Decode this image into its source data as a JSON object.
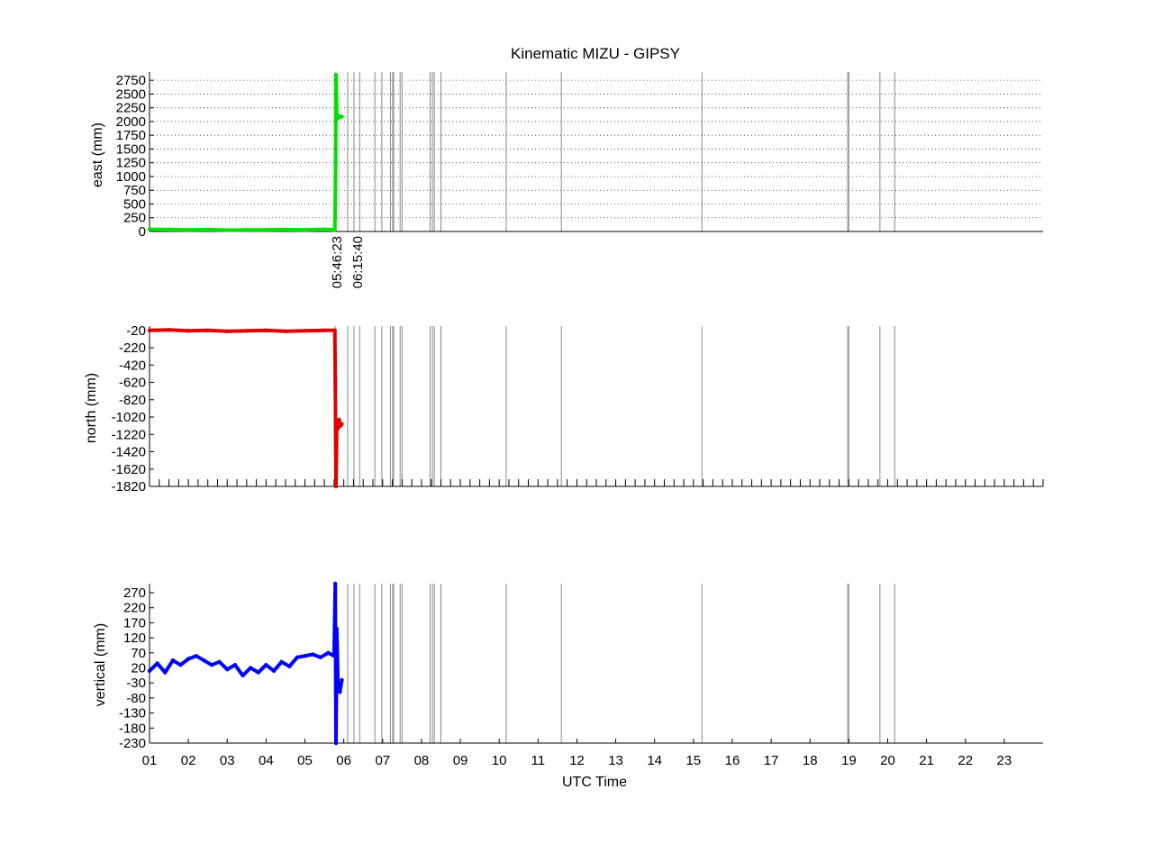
{
  "figure": {
    "title": "Kinematic MIZU - GIPSY",
    "xlabel": "UTC Time"
  },
  "chart_data": [
    {
      "type": "scatter",
      "title": "Kinematic MIZU - GIPSY",
      "xlabel": "",
      "ylabel": "east (mm)",
      "color": "#00e000",
      "xlim": [
        1,
        24
      ],
      "ylim": [
        0,
        2900
      ],
      "yticks": [
        0,
        250,
        500,
        750,
        1000,
        1250,
        1500,
        1750,
        2000,
        2250,
        2500,
        2750
      ],
      "ygrid": "dotted",
      "event_label_1": "05:46:23",
      "event_label_2": "06:15:40",
      "series": [
        {
          "x": [
            1.0,
            1.5,
            2.0,
            2.5,
            3.0,
            3.5,
            4.0,
            4.5,
            5.0,
            5.5,
            5.77,
            5.78,
            5.79,
            5.8,
            5.82,
            5.84,
            5.87,
            5.9,
            5.95
          ],
          "values": [
            40,
            35,
            30,
            35,
            25,
            30,
            30,
            35,
            30,
            40,
            30,
            600,
            1300,
            2850,
            2100,
            2050,
            2100,
            2080,
            2090
          ]
        }
      ]
    },
    {
      "type": "scatter",
      "xlabel": "",
      "ylabel": "north (mm)",
      "color": "#e00000",
      "xlim": [
        1,
        24
      ],
      "ylim": [
        -1820,
        20
      ],
      "yticks": [
        -1820,
        -1620,
        -1420,
        -1220,
        -1020,
        -820,
        -620,
        -420,
        -220,
        -20
      ],
      "series": [
        {
          "x": [
            1.0,
            1.5,
            2.0,
            2.5,
            3.0,
            3.5,
            4.0,
            4.5,
            5.0,
            5.5,
            5.77,
            5.78,
            5.79,
            5.8,
            5.82,
            5.85,
            5.88,
            5.92,
            5.95
          ],
          "values": [
            -20,
            -15,
            -25,
            -20,
            -30,
            -25,
            -20,
            -30,
            -25,
            -20,
            -20,
            -600,
            -1200,
            -1820,
            -1100,
            -1150,
            -1050,
            -1120,
            -1100
          ]
        }
      ]
    },
    {
      "type": "scatter",
      "xlabel": "UTC Time",
      "ylabel": "vertical (mm)",
      "color": "#0000ff",
      "xlim": [
        1,
        24
      ],
      "ylim": [
        -230,
        300
      ],
      "yticks": [
        -230,
        -180,
        -130,
        -80,
        -30,
        20,
        70,
        120,
        170,
        220,
        270
      ],
      "xticks": [
        "01",
        "02",
        "03",
        "04",
        "05",
        "06",
        "07",
        "08",
        "09",
        "10",
        "11",
        "12",
        "13",
        "14",
        "15",
        "16",
        "17",
        "18",
        "19",
        "20",
        "21",
        "22",
        "23"
      ],
      "series": [
        {
          "x": [
            1.0,
            1.2,
            1.4,
            1.6,
            1.8,
            2.0,
            2.2,
            2.4,
            2.6,
            2.8,
            3.0,
            3.2,
            3.4,
            3.6,
            3.8,
            4.0,
            4.2,
            4.4,
            4.6,
            4.8,
            5.0,
            5.2,
            5.4,
            5.6,
            5.75,
            5.78,
            5.8,
            5.82,
            5.85,
            5.9,
            5.95
          ],
          "values": [
            10,
            35,
            5,
            45,
            30,
            50,
            60,
            45,
            30,
            40,
            15,
            30,
            -5,
            20,
            5,
            30,
            10,
            40,
            25,
            55,
            60,
            65,
            55,
            70,
            60,
            300,
            -230,
            150,
            -40,
            -60,
            -20
          ]
        }
      ]
    }
  ],
  "event_lines_hours": [
    5.773,
    6.1,
    6.262,
    6.41,
    6.8,
    6.98,
    7.2,
    7.26,
    7.28,
    7.45,
    7.5,
    8.22,
    8.28,
    8.33,
    8.5,
    10.18,
    11.6,
    15.22,
    18.97,
    19.0,
    19.8,
    20.18
  ]
}
